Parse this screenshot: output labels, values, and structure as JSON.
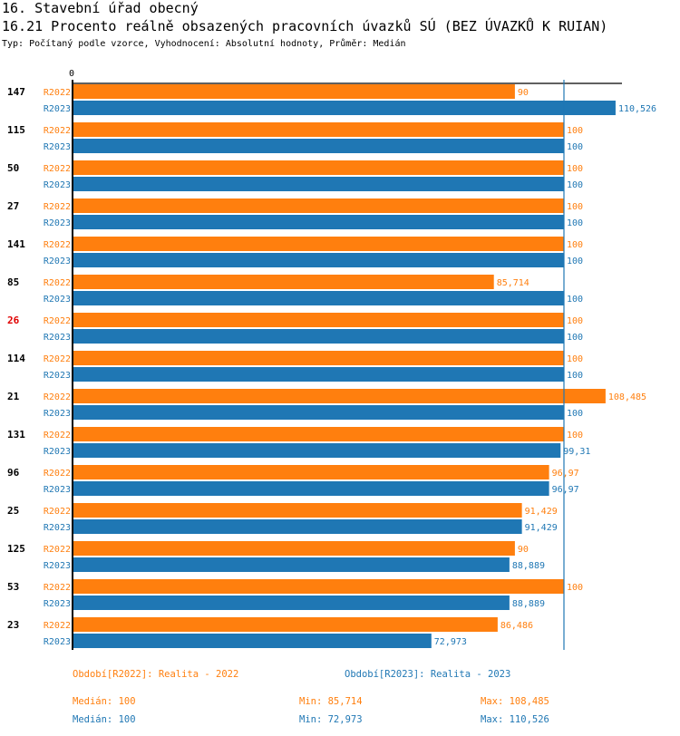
{
  "header": {
    "section_title": "16. Stavební úřad obecný",
    "indicator_title": "16.21 Procento reálně obsazených pracovních úvazků SÚ (BEZ ÚVAZKŮ K RUIAN)",
    "subtitle": "Typ: Počítaný podle vzorce, Vyhodnocení: Absolutní hodnoty, Průměr: Medián"
  },
  "colors": {
    "r2022": "#ff7f0e",
    "r2023": "#1f77b4",
    "highlight": "#e00000",
    "axis": "#000000"
  },
  "chart_data": {
    "type": "bar",
    "orientation": "horizontal",
    "title": "16.21 Procento reálně obsazených pracovních úvazků SÚ (BEZ ÚVAZKŮ K RUIAN)",
    "xlabel": "",
    "ylabel": "",
    "x_tick_labels": [
      "0"
    ],
    "xlim": [
      0,
      112
    ],
    "reference_line": {
      "name": "Medián",
      "value": 100
    },
    "highlighted_category": "26",
    "categories": [
      "147",
      "115",
      "50",
      "27",
      "141",
      "85",
      "26",
      "114",
      "21",
      "131",
      "96",
      "25",
      "125",
      "53",
      "23"
    ],
    "series": [
      {
        "name": "R2022",
        "values": [
          90,
          100,
          100,
          100,
          100,
          85.714,
          100,
          100,
          108.485,
          100,
          96.97,
          91.429,
          90,
          100,
          86.486
        ],
        "labels": [
          "90",
          "100",
          "100",
          "100",
          "100",
          "85,714",
          "100",
          "100",
          "108,485",
          "100",
          "96,97",
          "91,429",
          "90",
          "100",
          "86,486"
        ]
      },
      {
        "name": "R2023",
        "values": [
          110.526,
          100,
          100,
          100,
          100,
          100,
          100,
          100,
          100,
          99.31,
          96.97,
          91.429,
          88.889,
          88.889,
          72.973
        ],
        "labels": [
          "110,526",
          "100",
          "100",
          "100",
          "100",
          "100",
          "100",
          "100",
          "100",
          "99,31",
          "96,97",
          "91,429",
          "88,889",
          "88,889",
          "72,973"
        ]
      }
    ],
    "legend": [
      {
        "label": "Období[R2022]: Realita - 2022",
        "series": "R2022"
      },
      {
        "label": "Období[R2023]: Realita - 2023",
        "series": "R2023"
      }
    ],
    "legend_position": "bottom"
  },
  "stats": {
    "r2022": {
      "median": "Medián: 100",
      "min": "Min: 85,714",
      "max": "Max: 108,485"
    },
    "r2023": {
      "median": "Medián: 100",
      "min": "Min: 72,973",
      "max": "Max: 110,526"
    }
  }
}
